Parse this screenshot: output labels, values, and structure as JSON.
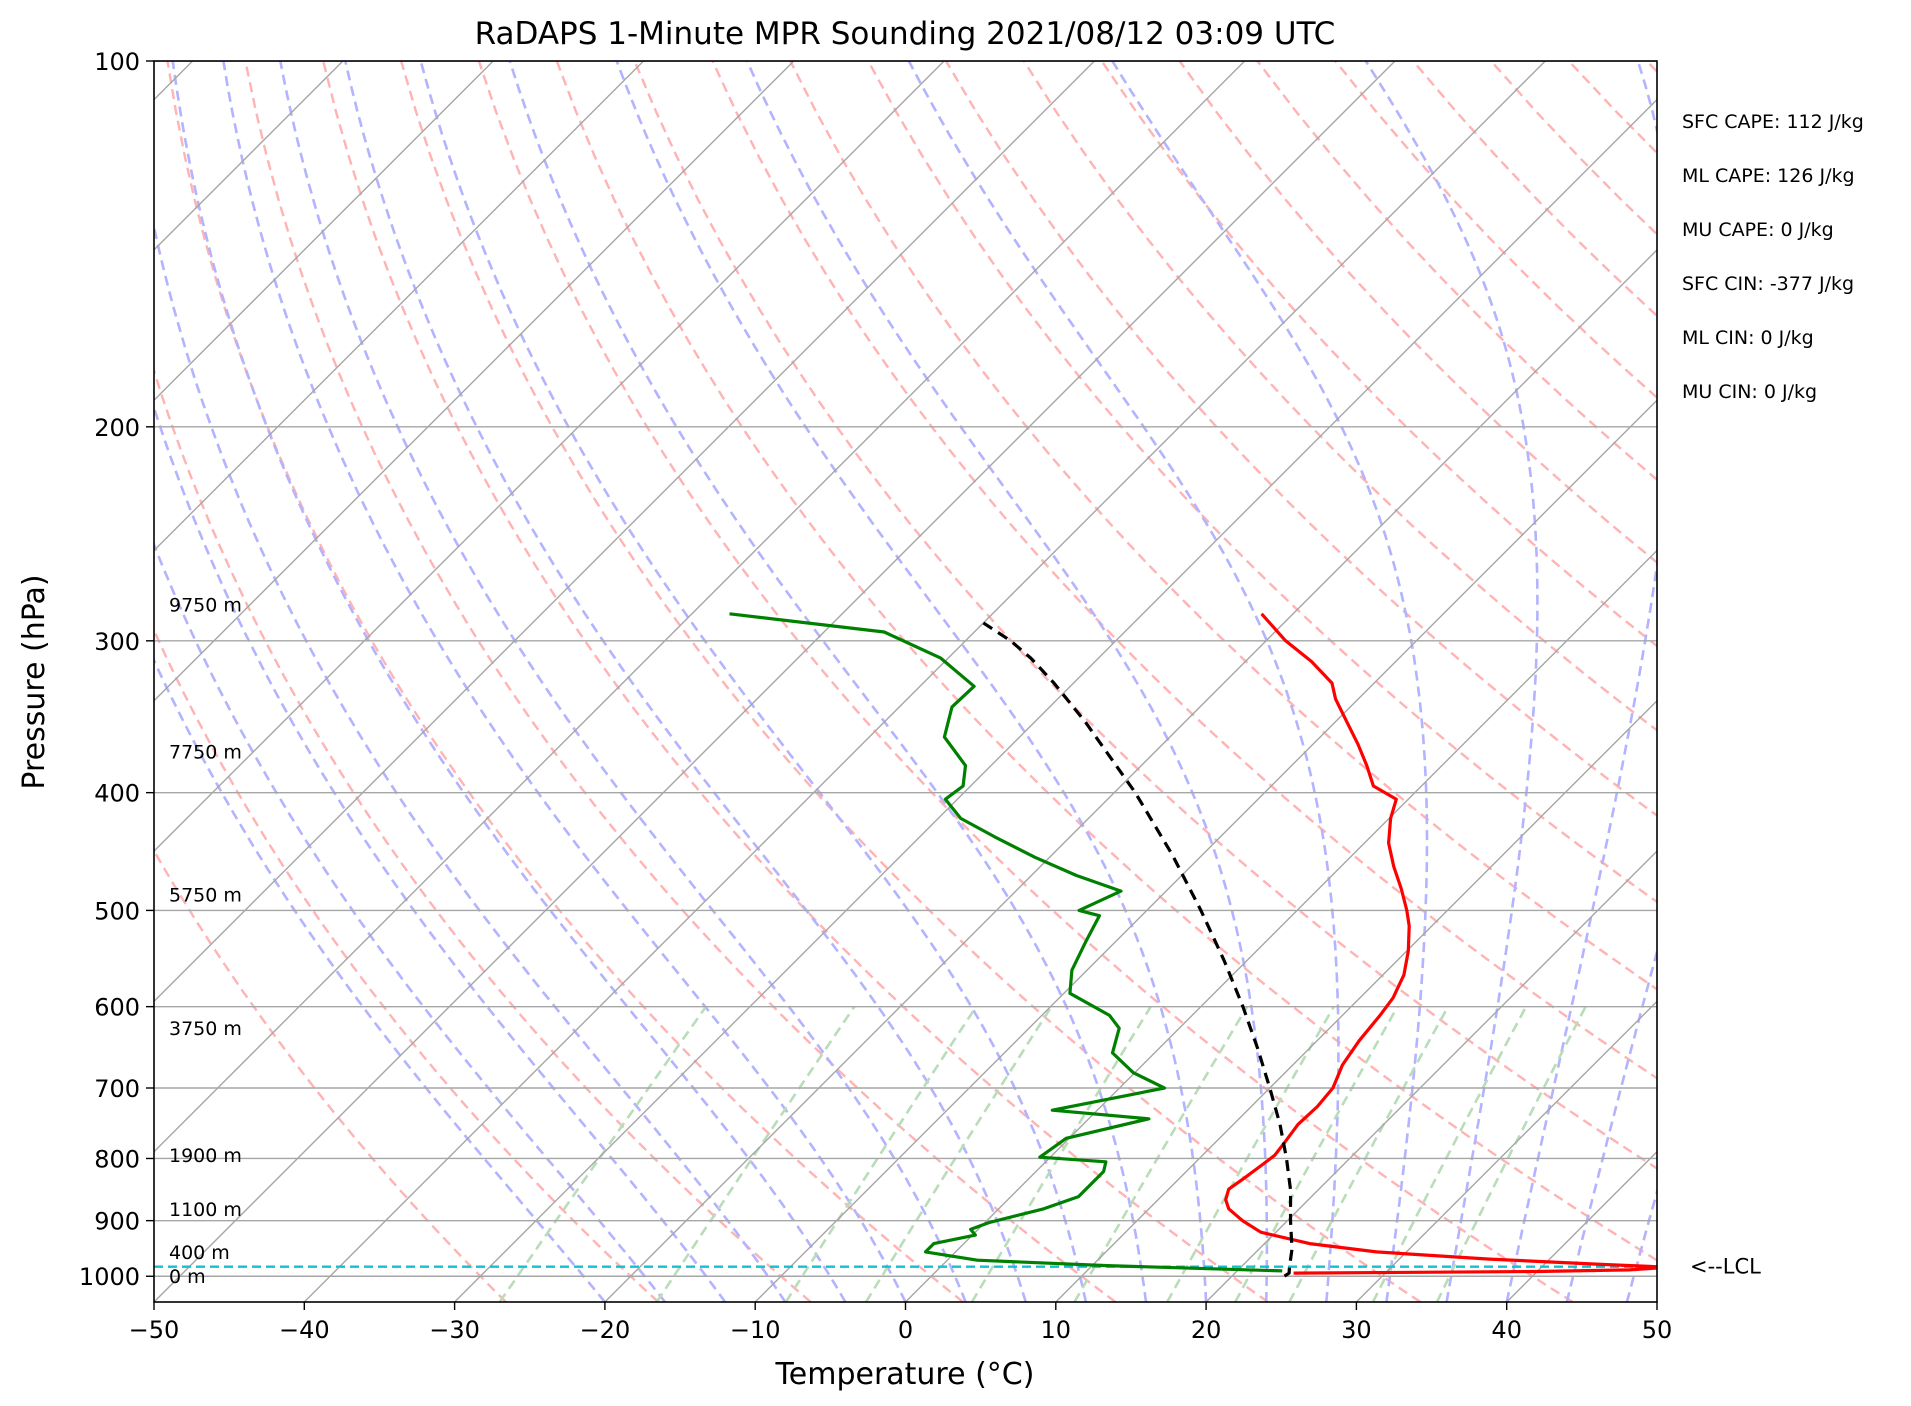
{
  "chart_data": {
    "type": "line",
    "title": "RaDAPS 1-Minute MPR Sounding 2021/08/12 03:09 UTC",
    "xlabel": "Temperature (°C)",
    "ylabel": "Pressure (hPa)",
    "xlim": [
      -50,
      50
    ],
    "ylim": [
      1050,
      100
    ],
    "y_scale": "log",
    "x_ticks": [
      -50,
      -40,
      -30,
      -20,
      -10,
      0,
      10,
      20,
      30,
      40,
      50
    ],
    "x_tick_labels": [
      "−50",
      "−40",
      "−30",
      "−20",
      "−10",
      "0",
      "10",
      "20",
      "30",
      "40",
      "50"
    ],
    "y_ticks": [
      100,
      200,
      300,
      400,
      500,
      600,
      700,
      800,
      900,
      1000
    ],
    "y_tick_labels": [
      "100",
      "200",
      "300",
      "400",
      "500",
      "600",
      "700",
      "800",
      "900",
      "1000"
    ],
    "skew": "skew-T log-P",
    "background_lines": {
      "isotherms_color": "#a6a6a6",
      "dry_adiabats_color": "#ffb3b3",
      "moist_adiabats_color": "#b3b3ff",
      "mixing_ratio_color": "#b8ddb8"
    },
    "series": [
      {
        "role": "temperature",
        "color": "#ff0000",
        "points": [
          [
            994,
            23.9
          ],
          [
            991,
            40.0
          ],
          [
            988,
            46.0
          ],
          [
            983,
            48.5
          ],
          [
            978,
            44.0
          ],
          [
            968,
            36.0
          ],
          [
            955,
            28.0
          ],
          [
            940,
            23.0
          ],
          [
            920,
            19.0
          ],
          [
            900,
            17.0
          ],
          [
            880,
            15.3
          ],
          [
            865,
            14.5
          ],
          [
            848,
            14.0
          ],
          [
            830,
            14.3
          ],
          [
            810,
            14.6
          ],
          [
            795,
            14.8
          ],
          [
            775,
            14.6
          ],
          [
            750,
            14.3
          ],
          [
            725,
            14.4
          ],
          [
            700,
            14.2
          ],
          [
            670,
            13.3
          ],
          [
            640,
            12.8
          ],
          [
            610,
            12.5
          ],
          [
            590,
            12.2
          ],
          [
            565,
            11.4
          ],
          [
            540,
            10.1
          ],
          [
            515,
            8.5
          ],
          [
            500,
            7.3
          ],
          [
            480,
            5.5
          ],
          [
            460,
            3.5
          ],
          [
            440,
            1.6
          ],
          [
            420,
            0.1
          ],
          [
            405,
            -0.8
          ],
          [
            395,
            -3.2
          ],
          [
            380,
            -5.0
          ],
          [
            365,
            -7.0
          ],
          [
            350,
            -9.2
          ],
          [
            335,
            -11.5
          ],
          [
            325,
            -12.8
          ],
          [
            312,
            -15.6
          ],
          [
            300,
            -18.7
          ],
          [
            285,
            -22.1
          ]
        ]
      },
      {
        "role": "dewpoint",
        "color": "#008000",
        "points": [
          [
            990,
            23.0
          ],
          [
            980,
            11.0
          ],
          [
            970,
            2.0
          ],
          [
            955,
            -2.0
          ],
          [
            940,
            -2.0
          ],
          [
            925,
            0.2
          ],
          [
            915,
            -0.5
          ],
          [
            903,
            0.3
          ],
          [
            880,
            3.0
          ],
          [
            860,
            4.5
          ],
          [
            840,
            4.5
          ],
          [
            820,
            4.5
          ],
          [
            805,
            4.0
          ],
          [
            798,
            -0.7
          ],
          [
            770,
            -0.2
          ],
          [
            742,
            4.0
          ],
          [
            730,
            -3.0
          ],
          [
            700,
            3.0
          ],
          [
            680,
            -0.1
          ],
          [
            655,
            -2.8
          ],
          [
            625,
            -4.0
          ],
          [
            610,
            -5.5
          ],
          [
            585,
            -9.6
          ],
          [
            560,
            -11.0
          ],
          [
            530,
            -12.0
          ],
          [
            505,
            -12.8
          ],
          [
            500,
            -14.5
          ],
          [
            482,
            -13.0
          ],
          [
            468,
            -17.0
          ],
          [
            452,
            -21.0
          ],
          [
            435,
            -25.0
          ],
          [
            420,
            -28.5
          ],
          [
            405,
            -30.8
          ],
          [
            395,
            -30.5
          ],
          [
            380,
            -31.7
          ],
          [
            360,
            -35.0
          ],
          [
            340,
            -36.5
          ],
          [
            327,
            -36.4
          ],
          [
            310,
            -40.5
          ],
          [
            295,
            -46.0
          ],
          [
            285,
            -57.5
          ]
        ]
      },
      {
        "role": "parcel",
        "color": "#000000",
        "style": "dashed",
        "points": [
          [
            1000,
            23.5
          ],
          [
            994,
            23.6
          ],
          [
            982,
            23.2
          ],
          [
            950,
            22.2
          ],
          [
            900,
            20.2
          ],
          [
            850,
            18.2
          ],
          [
            800,
            15.8
          ],
          [
            750,
            13.1
          ],
          [
            700,
            10.0
          ],
          [
            650,
            6.6
          ],
          [
            600,
            2.8
          ],
          [
            550,
            -1.5
          ],
          [
            500,
            -6.4
          ],
          [
            450,
            -12.0
          ],
          [
            400,
            -18.6
          ],
          [
            350,
            -26.6
          ],
          [
            325,
            -31.3
          ],
          [
            310,
            -34.5
          ],
          [
            300,
            -37.0
          ],
          [
            290,
            -40.0
          ]
        ]
      }
    ],
    "lcl": {
      "pressure": 982,
      "label": "<--LCL",
      "color": "#17becf"
    },
    "height_labels": [
      {
        "text": "9750 m",
        "pressure": 280
      },
      {
        "text": "7750 m",
        "pressure": 370
      },
      {
        "text": "5750 m",
        "pressure": 485
      },
      {
        "text": "3750 m",
        "pressure": 625
      },
      {
        "text": "1900 m",
        "pressure": 795
      },
      {
        "text": "1100 m",
        "pressure": 880
      },
      {
        "text": "400 m",
        "pressure": 955
      },
      {
        "text": "0 m",
        "pressure": 1000
      }
    ],
    "stats": [
      "SFC CAPE: 112 J/kg",
      "ML CAPE: 126 J/kg",
      "MU CAPE: 0 J/kg",
      "SFC CIN: -377 J/kg",
      "ML CIN: 0 J/kg",
      "MU CIN: 0 J/kg"
    ],
    "grid": true
  }
}
